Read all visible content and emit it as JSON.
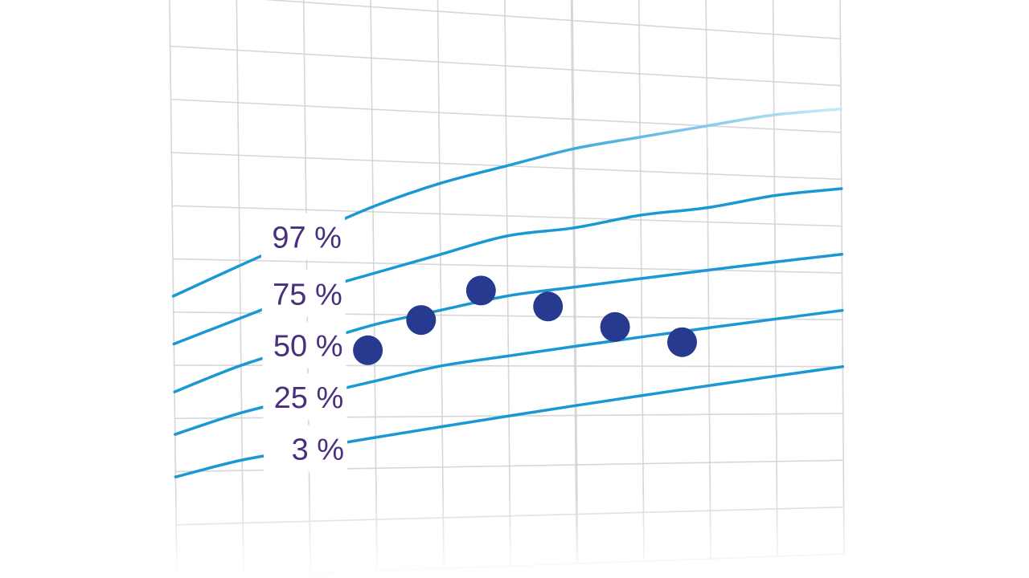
{
  "chart_data": {
    "type": "line",
    "title": "",
    "xlabel": "",
    "ylabel": "",
    "grid": true,
    "x": [
      0,
      1,
      2,
      3,
      4,
      5,
      6,
      7,
      8,
      9,
      10
    ],
    "xlim": [
      0,
      10
    ],
    "ylim": [
      0,
      100
    ],
    "series": [
      {
        "name": "97 %",
        "values": [
          53,
          59,
          65,
          71,
          76,
          80,
          84,
          87,
          90,
          93,
          95
        ]
      },
      {
        "name": "75 %",
        "values": [
          44,
          49,
          54,
          58,
          62,
          66,
          68,
          71,
          73,
          76,
          78
        ]
      },
      {
        "name": "50 %",
        "values": [
          35,
          40,
          44,
          48,
          51,
          54,
          56,
          58,
          60,
          62,
          64
        ]
      },
      {
        "name": "25 %",
        "values": [
          27,
          31,
          34,
          37,
          40,
          42,
          44,
          46,
          48,
          50,
          52
        ]
      },
      {
        "name": "3 %",
        "values": [
          19,
          22,
          24,
          26,
          28,
          30,
          32,
          34,
          36,
          38,
          40
        ]
      }
    ],
    "points": {
      "x": [
        2.9,
        3.7,
        4.6,
        5.6,
        6.6,
        7.6
      ],
      "y": [
        43,
        49,
        55,
        52,
        48,
        45
      ]
    },
    "line_color": "#1a98d4",
    "fade_color": "#c5e8f7",
    "point_color": "#273a8f",
    "grid_color": "#cfcfd6",
    "label_color": "#4a2f7f"
  }
}
